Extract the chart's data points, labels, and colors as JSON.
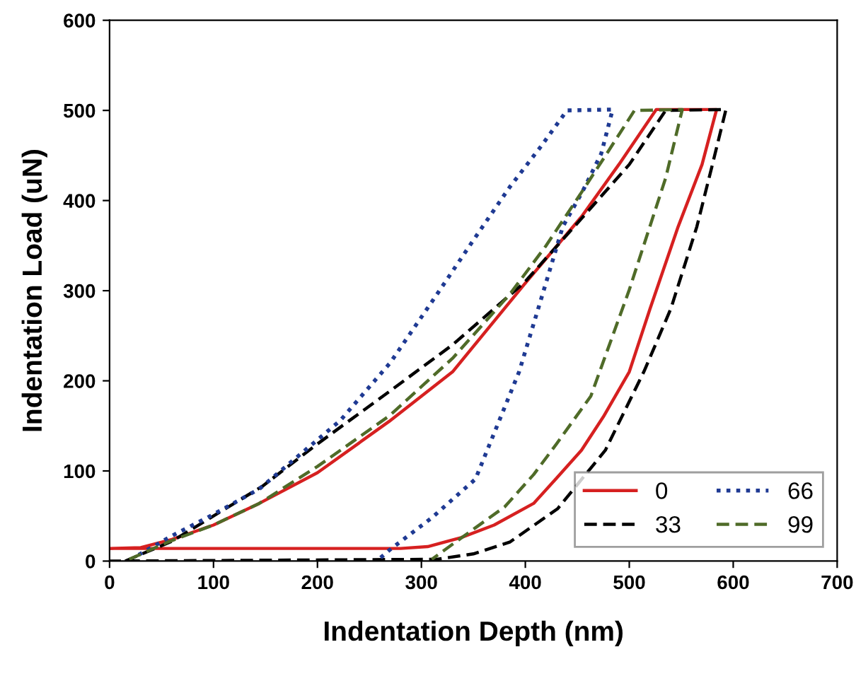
{
  "chart_data": {
    "type": "line",
    "xlabel": "Indentation Depth (nm)",
    "ylabel": "Indentation Load (uN)",
    "xlim": [
      0,
      700
    ],
    "ylim": [
      0,
      600
    ],
    "xticks": [
      0,
      100,
      200,
      300,
      400,
      500,
      600,
      700
    ],
    "yticks": [
      0,
      100,
      200,
      300,
      400,
      500,
      600
    ],
    "grid": false,
    "legend": "bottom right",
    "marker": "none",
    "series": [
      {
        "name": "0",
        "color": "#d62020",
        "line_style": "solid",
        "x": [
          0,
          30,
          60,
          100,
          144,
          200,
          269,
          330,
          399,
          454,
          490,
          526,
          584,
          570,
          547,
          520,
          500,
          475,
          454,
          430,
          408,
          370,
          338,
          306,
          280,
          3
        ],
        "values": [
          14,
          15,
          24,
          40,
          64,
          98,
          155,
          210,
          307,
          382,
          440,
          501,
          501,
          440,
          371,
          280,
          210,
          160,
          123,
          92,
          64,
          40,
          26,
          16,
          14,
          14
        ]
      },
      {
        "name": "33",
        "color": "#000000",
        "line_style": "dashed",
        "x": [
          15,
          60,
          97,
          147,
          200,
          269,
          330,
          399,
          454,
          500,
          535,
          593,
          580,
          565,
          540,
          514,
          477,
          431,
          385,
          350,
          315,
          0
        ],
        "values": [
          0,
          22,
          48,
          83,
          130,
          188,
          240,
          309,
          380,
          440,
          500,
          501,
          440,
          371,
          280,
          210,
          123,
          58,
          21,
          8,
          2,
          0
        ]
      },
      {
        "name": "66",
        "color": "#1f3a93",
        "line_style": "dotted",
        "x": [
          28,
          60,
          97,
          144,
          222,
          270,
          315,
          350,
          385,
          415,
          440,
          484,
          473,
          455,
          436,
          415,
          394,
          352,
          310,
          269,
          257
        ],
        "values": [
          7,
          28,
          50,
          80,
          156,
          220,
          296,
          356,
          415,
          460,
          500,
          501,
          452,
          410,
          371,
          290,
          210,
          91,
          48,
          12,
          0
        ]
      },
      {
        "name": "99",
        "color": "#4f6b28",
        "line_style": "dashed",
        "x": [
          19,
          56,
          100,
          144,
          200,
          269,
          330,
          385,
          420,
          454,
          480,
          505,
          551,
          535,
          500,
          463,
          430,
          408,
          380,
          352,
          310
        ],
        "values": [
          2,
          21,
          40,
          64,
          105,
          161,
          225,
          296,
          350,
          409,
          455,
          500,
          501,
          425,
          301,
          183,
          130,
          96,
          60,
          37,
          2
        ]
      }
    ]
  }
}
